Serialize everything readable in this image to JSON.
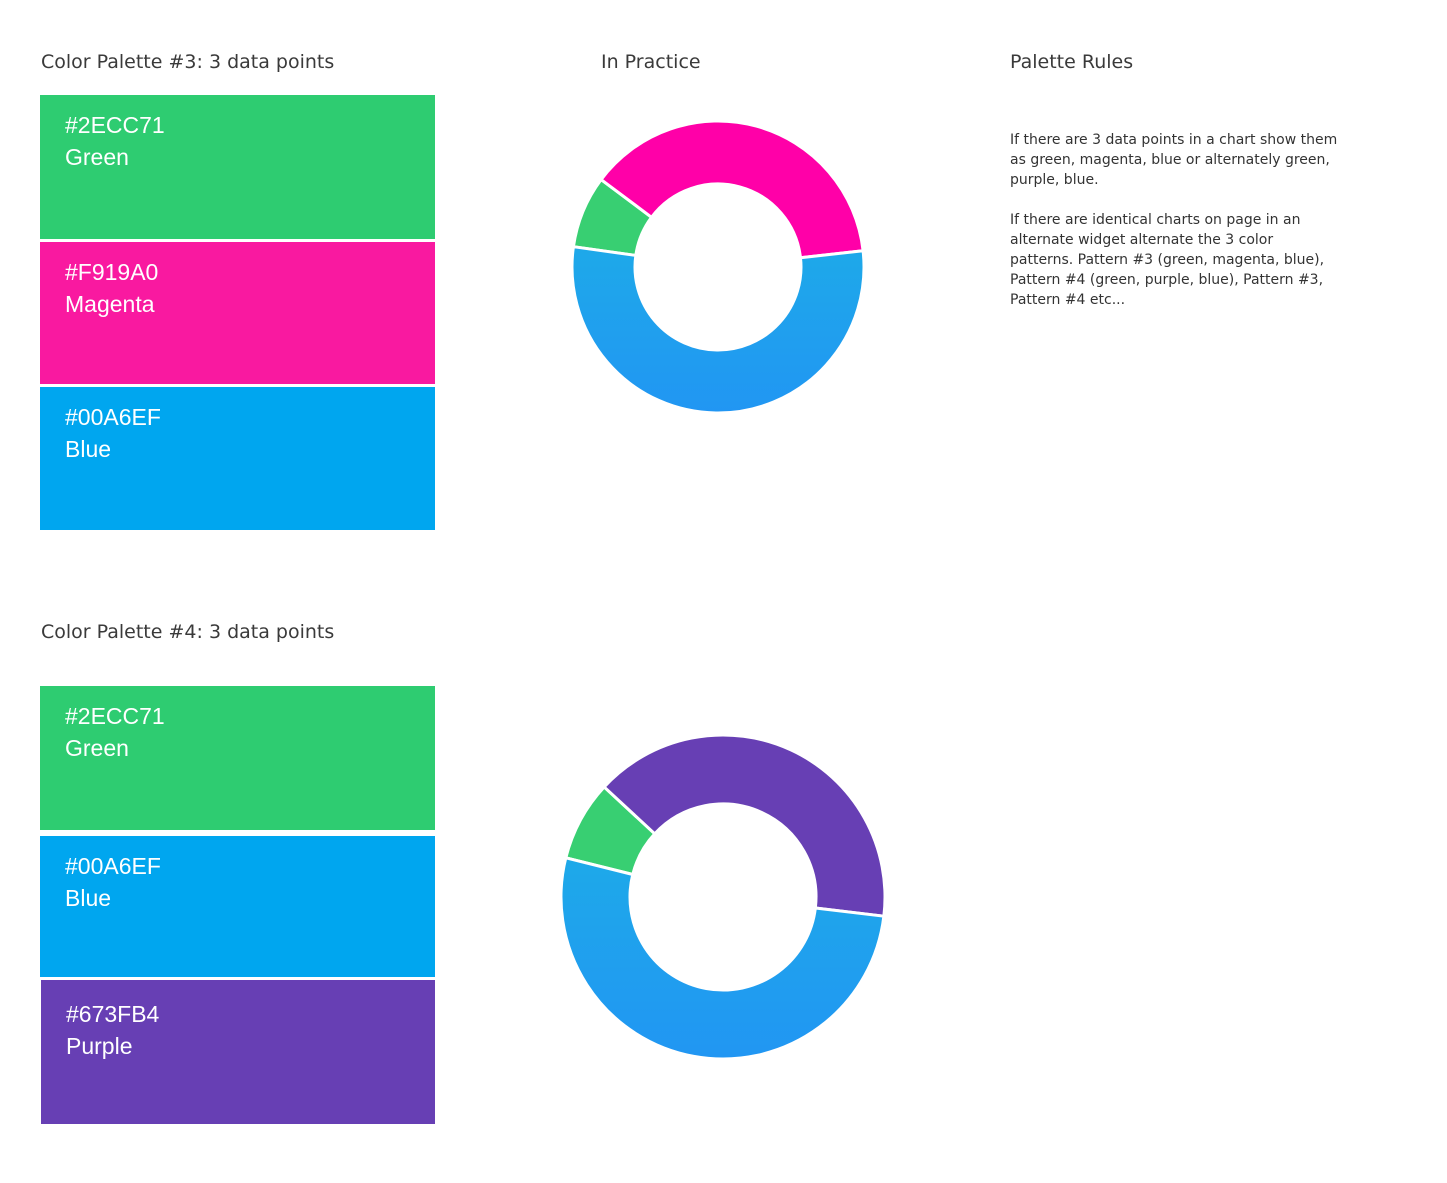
{
  "palette3": {
    "title": "Color Palette #3: 3 data points",
    "swatches": [
      {
        "hex": "#2ECC71",
        "name": "Green",
        "color": "#2ecc71"
      },
      {
        "hex": "#F919A0",
        "name": "Magenta",
        "color": "#f919a0"
      },
      {
        "hex": "#00A6EF",
        "name": "Blue",
        "color": "#00a6ef"
      }
    ]
  },
  "palette4": {
    "title": "Color Palette #4: 3 data points",
    "swatches": [
      {
        "hex": "#2ECC71",
        "name": "Green",
        "color": "#2ecc71"
      },
      {
        "hex": "#00A6EF",
        "name": "Blue",
        "color": "#00a6ef"
      },
      {
        "hex": "#673FB4",
        "name": "Purple",
        "color": "#673fb4"
      }
    ]
  },
  "in_practice": {
    "title": "In Practice"
  },
  "rules": {
    "title": "Palette Rules",
    "paragraphs": [
      "If there are 3 data points in a chart show them as green, magenta, blue or alternately green, purple, blue.",
      "If there are identical charts on page in an alternate widget alternate the 3 color patterns. Pattern #3 (green, magenta, blue), Pattern #4 (green, purple, blue), Pattern #3, Pattern #4 etc..."
    ]
  },
  "chart_data": [
    {
      "type": "pie",
      "title": "",
      "donut": true,
      "slices": [
        {
          "value": 8,
          "color": "#38cf72"
        },
        {
          "value": 38,
          "color": "#ff00a8"
        },
        {
          "value": 54,
          "color": "#2196f3",
          "gradient_to": "#1ea9e9"
        }
      ]
    },
    {
      "type": "pie",
      "title": "",
      "donut": true,
      "slices": [
        {
          "value": 8,
          "color": "#38cf72"
        },
        {
          "value": 40,
          "color": "#673fb4"
        },
        {
          "value": 52,
          "color": "#2196f3",
          "gradient_to": "#1ea9e9"
        }
      ]
    }
  ]
}
